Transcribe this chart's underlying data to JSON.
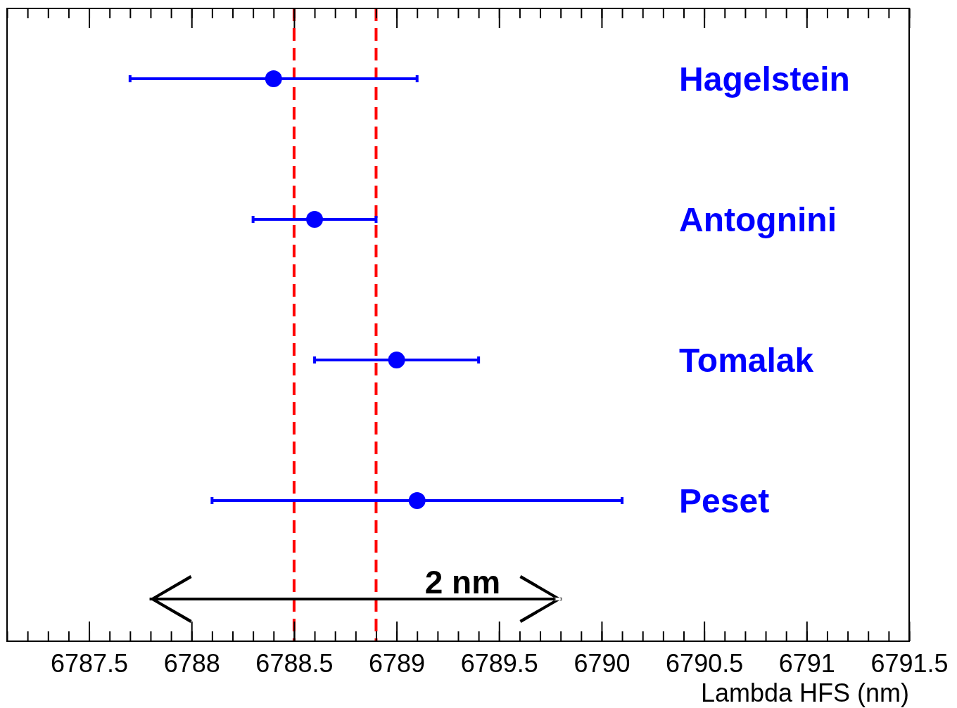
{
  "chart_data": {
    "type": "scatter",
    "orientation": "horizontal",
    "categories": [
      "Hagelstein",
      "Antognini",
      "Tomalak",
      "Peset"
    ],
    "values": [
      6788.4,
      6788.6,
      6789.0,
      6789.1
    ],
    "errors": [
      [
        6787.7,
        6789.1
      ],
      [
        6788.3,
        6788.9
      ],
      [
        6788.6,
        6789.4
      ],
      [
        6788.1,
        6790.1
      ]
    ],
    "color": "#0000ff",
    "marker": "circle",
    "xlabel": "Lambda HFS (nm)",
    "xlim": [
      6787.1,
      6791.5
    ],
    "xticks": [
      6787.5,
      6788,
      6788.5,
      6789,
      6789.5,
      6790,
      6790.5,
      6791,
      6791.5
    ],
    "ref_lines": [
      {
        "axis": "x",
        "value": 6788.5,
        "color": "#ff0000",
        "line_style": "dashed"
      },
      {
        "axis": "x",
        "value": 6788.9,
        "color": "#ff0000",
        "line_style": "dashed"
      }
    ],
    "annotations": [
      "2 nm"
    ],
    "grid": false,
    "legend": false
  }
}
